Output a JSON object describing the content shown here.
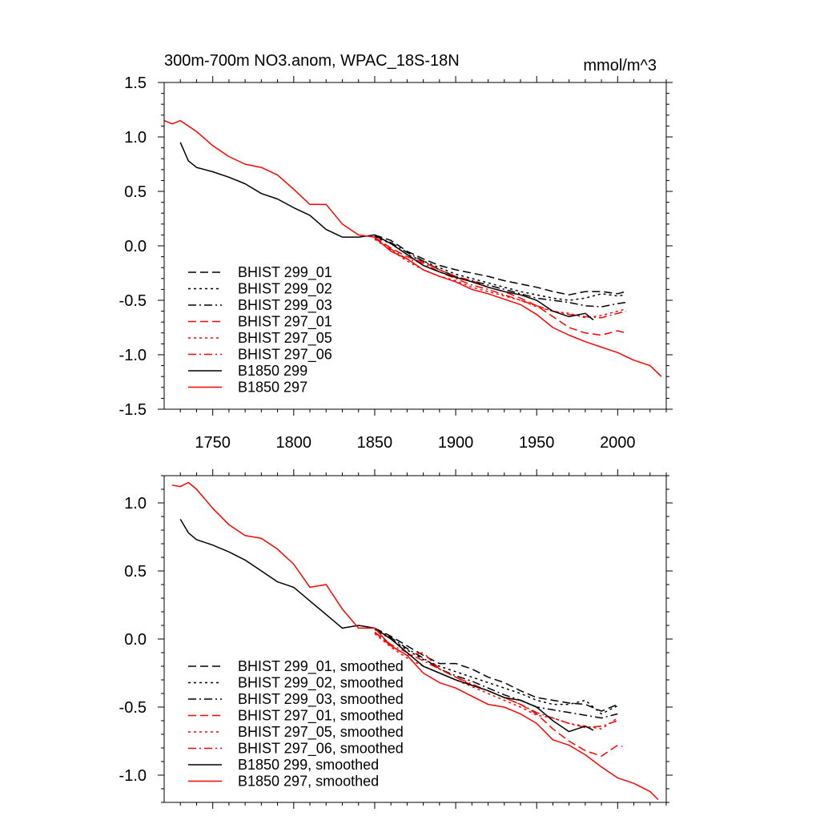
{
  "chart_data": [
    {
      "type": "line",
      "title": "300m-700m NO3.anom, WPAC_18S-18N",
      "units": "mmol/m^3",
      "xlabel": "",
      "ylabel": "",
      "xlim": [
        1720,
        2030
      ],
      "ylim": [
        -1.5,
        1.5
      ],
      "x_ticks": [
        1750,
        1800,
        1850,
        1900,
        1950,
        2000
      ],
      "x_tick_labels": [
        "1750",
        "1800",
        "1850",
        "1900",
        "1950",
        "2000"
      ],
      "y_ticks": [
        1.5,
        1.0,
        0.5,
        0.0,
        -0.5,
        -1.0,
        -1.5
      ],
      "y_tick_labels": [
        "1.5",
        "1.0",
        "0.5",
        "0.0",
        "-0.5",
        "-1.0",
        "-1.5"
      ],
      "legend_position": "bottom-left",
      "series": [
        {
          "name": "BHIST 299_01",
          "color": "#000000",
          "dash": "dash",
          "x": [
            1850,
            1860,
            1870,
            1880,
            1890,
            1900,
            1910,
            1920,
            1930,
            1940,
            1950,
            1960,
            1970,
            1980,
            1990,
            2000,
            2005
          ],
          "y": [
            0.1,
            0.05,
            -0.05,
            -0.12,
            -0.18,
            -0.22,
            -0.25,
            -0.28,
            -0.32,
            -0.35,
            -0.38,
            -0.42,
            -0.45,
            -0.42,
            -0.42,
            -0.44,
            -0.42
          ]
        },
        {
          "name": "BHIST 299_02",
          "color": "#000000",
          "dash": "dot",
          "x": [
            1850,
            1860,
            1870,
            1880,
            1890,
            1900,
            1910,
            1920,
            1930,
            1940,
            1950,
            1960,
            1970,
            1980,
            1990,
            2000,
            2005
          ],
          "y": [
            0.08,
            0.02,
            -0.08,
            -0.14,
            -0.2,
            -0.26,
            -0.3,
            -0.34,
            -0.38,
            -0.42,
            -0.45,
            -0.48,
            -0.5,
            -0.48,
            -0.44,
            -0.46,
            -0.45
          ]
        },
        {
          "name": "BHIST 299_03",
          "color": "#000000",
          "dash": "dashdot",
          "x": [
            1850,
            1860,
            1870,
            1880,
            1890,
            1900,
            1910,
            1920,
            1930,
            1940,
            1950,
            1960,
            1970,
            1980,
            1990,
            2000,
            2005
          ],
          "y": [
            0.09,
            0.03,
            -0.06,
            -0.14,
            -0.22,
            -0.28,
            -0.32,
            -0.36,
            -0.4,
            -0.44,
            -0.48,
            -0.5,
            -0.52,
            -0.55,
            -0.56,
            -0.53,
            -0.52
          ]
        },
        {
          "name": "BHIST 297_01",
          "color": "#ff0000",
          "dash": "dash",
          "x": [
            1850,
            1860,
            1870,
            1880,
            1890,
            1900,
            1910,
            1920,
            1930,
            1940,
            1950,
            1960,
            1970,
            1980,
            1990,
            2000,
            2005
          ],
          "y": [
            0.08,
            -0.02,
            -0.1,
            -0.15,
            -0.22,
            -0.28,
            -0.32,
            -0.38,
            -0.42,
            -0.48,
            -0.55,
            -0.65,
            -0.75,
            -0.8,
            -0.82,
            -0.78,
            -0.8
          ]
        },
        {
          "name": "BHIST 297_05",
          "color": "#ff0000",
          "dash": "dot",
          "x": [
            1850,
            1860,
            1870,
            1880,
            1890,
            1900,
            1910,
            1920,
            1930,
            1940,
            1950,
            1960,
            1970,
            1980,
            1990,
            2000,
            2005
          ],
          "y": [
            0.06,
            -0.04,
            -0.14,
            -0.22,
            -0.28,
            -0.32,
            -0.38,
            -0.42,
            -0.46,
            -0.5,
            -0.56,
            -0.6,
            -0.62,
            -0.66,
            -0.64,
            -0.6,
            -0.58
          ]
        },
        {
          "name": "BHIST 297_06",
          "color": "#ff0000",
          "dash": "dashdot",
          "x": [
            1850,
            1860,
            1870,
            1880,
            1890,
            1900,
            1910,
            1920,
            1930,
            1940,
            1950,
            1960,
            1970,
            1980,
            1990,
            2000,
            2005
          ],
          "y": [
            0.07,
            -0.03,
            -0.12,
            -0.16,
            -0.24,
            -0.3,
            -0.36,
            -0.4,
            -0.45,
            -0.5,
            -0.55,
            -0.6,
            -0.63,
            -0.65,
            -0.66,
            -0.62,
            -0.6
          ]
        },
        {
          "name": "B1850 299",
          "color": "#000000",
          "dash": "solid",
          "x": [
            1730,
            1735,
            1740,
            1750,
            1760,
            1770,
            1780,
            1790,
            1800,
            1810,
            1820,
            1830,
            1840,
            1850,
            1860,
            1870,
            1880,
            1890,
            1900,
            1910,
            1920,
            1930,
            1940,
            1950,
            1960,
            1970,
            1980,
            1985
          ],
          "y": [
            0.95,
            0.78,
            0.72,
            0.68,
            0.63,
            0.57,
            0.48,
            0.43,
            0.35,
            0.28,
            0.15,
            0.08,
            0.08,
            0.1,
            0.02,
            -0.08,
            -0.18,
            -0.24,
            -0.29,
            -0.33,
            -0.38,
            -0.42,
            -0.45,
            -0.5,
            -0.6,
            -0.65,
            -0.62,
            -0.68
          ]
        },
        {
          "name": "B1850 297",
          "color": "#ff0000",
          "dash": "solid",
          "x": [
            1720,
            1725,
            1730,
            1740,
            1750,
            1760,
            1770,
            1780,
            1790,
            1800,
            1810,
            1820,
            1830,
            1840,
            1850,
            1860,
            1870,
            1880,
            1890,
            1900,
            1910,
            1920,
            1930,
            1940,
            1950,
            1960,
            1970,
            1980,
            1990,
            2000,
            2010,
            2020,
            2027
          ],
          "y": [
            1.15,
            1.12,
            1.15,
            1.05,
            0.92,
            0.82,
            0.75,
            0.72,
            0.65,
            0.52,
            0.38,
            0.38,
            0.2,
            0.1,
            0.08,
            -0.05,
            -0.12,
            -0.22,
            -0.28,
            -0.33,
            -0.4,
            -0.44,
            -0.49,
            -0.54,
            -0.63,
            -0.75,
            -0.82,
            -0.88,
            -0.93,
            -0.98,
            -1.05,
            -1.1,
            -1.2
          ]
        }
      ]
    },
    {
      "type": "line",
      "title": "",
      "xlim": [
        1720,
        2030
      ],
      "ylim": [
        -1.2,
        1.2
      ],
      "y_ticks": [
        1.0,
        0.5,
        0.0,
        -0.5,
        -1.0
      ],
      "y_tick_labels": [
        "1.0",
        "0.5",
        "0.0",
        "-0.5",
        "-1.0"
      ],
      "legend_position": "bottom-left",
      "series": [
        {
          "name": "BHIST 299_01, smoothed",
          "color": "#000000",
          "dash": "dash",
          "x": [
            1850,
            1860,
            1870,
            1880,
            1890,
            1900,
            1910,
            1920,
            1930,
            1940,
            1950,
            1960,
            1970,
            1980,
            1990,
            2000
          ],
          "y": [
            0.08,
            0.02,
            -0.05,
            -0.12,
            -0.18,
            -0.18,
            -0.22,
            -0.28,
            -0.32,
            -0.38,
            -0.43,
            -0.45,
            -0.47,
            -0.48,
            -0.53,
            -0.48
          ]
        },
        {
          "name": "BHIST 299_02, smoothed",
          "color": "#000000",
          "dash": "dot",
          "x": [
            1850,
            1860,
            1870,
            1880,
            1890,
            1900,
            1910,
            1920,
            1930,
            1940,
            1950,
            1960,
            1970,
            1980,
            1990,
            2000
          ],
          "y": [
            0.07,
            0.0,
            -0.08,
            -0.15,
            -0.2,
            -0.24,
            -0.28,
            -0.32,
            -0.36,
            -0.4,
            -0.45,
            -0.48,
            -0.48,
            -0.45,
            -0.55,
            -0.49
          ]
        },
        {
          "name": "BHIST 299_03, smoothed",
          "color": "#000000",
          "dash": "dashdot",
          "x": [
            1850,
            1860,
            1870,
            1880,
            1890,
            1900,
            1910,
            1920,
            1930,
            1940,
            1950,
            1960,
            1970,
            1980,
            1990,
            2000
          ],
          "y": [
            0.08,
            0.01,
            -0.07,
            -0.14,
            -0.22,
            -0.27,
            -0.31,
            -0.36,
            -0.41,
            -0.45,
            -0.5,
            -0.52,
            -0.54,
            -0.56,
            -0.58,
            -0.55
          ]
        },
        {
          "name": "BHIST 297_01, smoothed",
          "color": "#ff0000",
          "dash": "dash",
          "x": [
            1850,
            1860,
            1870,
            1880,
            1890,
            1900,
            1910,
            1920,
            1930,
            1940,
            1950,
            1960,
            1970,
            1980,
            1990,
            2000,
            2003
          ],
          "y": [
            0.05,
            -0.05,
            -0.12,
            -0.1,
            -0.22,
            -0.28,
            -0.34,
            -0.38,
            -0.43,
            -0.48,
            -0.55,
            -0.66,
            -0.75,
            -0.82,
            -0.86,
            -0.78,
            -0.79
          ]
        },
        {
          "name": "BHIST 297_05, smoothed",
          "color": "#ff0000",
          "dash": "dot",
          "x": [
            1850,
            1860,
            1870,
            1880,
            1890,
            1900,
            1910,
            1920,
            1930,
            1940,
            1950,
            1960,
            1970,
            1980,
            1990,
            2000
          ],
          "y": [
            0.04,
            -0.06,
            -0.14,
            -0.2,
            -0.25,
            -0.3,
            -0.35,
            -0.4,
            -0.45,
            -0.5,
            -0.56,
            -0.58,
            -0.62,
            -0.64,
            -0.66,
            -0.58
          ]
        },
        {
          "name": "BHIST 297_06, smoothed",
          "color": "#ff0000",
          "dash": "dashdot",
          "x": [
            1850,
            1860,
            1870,
            1880,
            1890,
            1900,
            1910,
            1920,
            1930,
            1940,
            1950,
            1960,
            1970,
            1980,
            1990,
            2000
          ],
          "y": [
            0.05,
            -0.04,
            -0.1,
            -0.16,
            -0.22,
            -0.28,
            -0.33,
            -0.38,
            -0.43,
            -0.48,
            -0.54,
            -0.58,
            -0.62,
            -0.65,
            -0.64,
            -0.6
          ]
        },
        {
          "name": "B1850 299, smoothed",
          "color": "#000000",
          "dash": "solid",
          "x": [
            1730,
            1735,
            1740,
            1750,
            1760,
            1770,
            1780,
            1790,
            1800,
            1810,
            1820,
            1830,
            1840,
            1850,
            1860,
            1870,
            1880,
            1890,
            1900,
            1910,
            1920,
            1930,
            1940,
            1950,
            1960,
            1970,
            1980,
            1985
          ],
          "y": [
            0.88,
            0.78,
            0.73,
            0.69,
            0.64,
            0.58,
            0.5,
            0.42,
            0.38,
            0.28,
            0.18,
            0.08,
            0.1,
            0.08,
            0.0,
            -0.1,
            -0.2,
            -0.25,
            -0.3,
            -0.34,
            -0.38,
            -0.43,
            -0.45,
            -0.5,
            -0.6,
            -0.68,
            -0.64,
            -0.67
          ]
        },
        {
          "name": "B1850 297, smoothed",
          "color": "#ff0000",
          "dash": "solid",
          "x": [
            1725,
            1730,
            1735,
            1740,
            1750,
            1760,
            1770,
            1780,
            1790,
            1800,
            1810,
            1820,
            1830,
            1840,
            1850,
            1860,
            1870,
            1880,
            1890,
            1900,
            1910,
            1920,
            1930,
            1940,
            1950,
            1960,
            1970,
            1980,
            1990,
            2000,
            2010,
            2020,
            2025
          ],
          "y": [
            1.13,
            1.12,
            1.15,
            1.1,
            0.96,
            0.84,
            0.76,
            0.74,
            0.66,
            0.55,
            0.38,
            0.4,
            0.22,
            0.08,
            0.08,
            -0.05,
            -0.12,
            -0.25,
            -0.32,
            -0.36,
            -0.42,
            -0.48,
            -0.5,
            -0.55,
            -0.62,
            -0.74,
            -0.78,
            -0.85,
            -0.94,
            -1.02,
            -1.06,
            -1.12,
            -1.18
          ]
        }
      ]
    }
  ]
}
